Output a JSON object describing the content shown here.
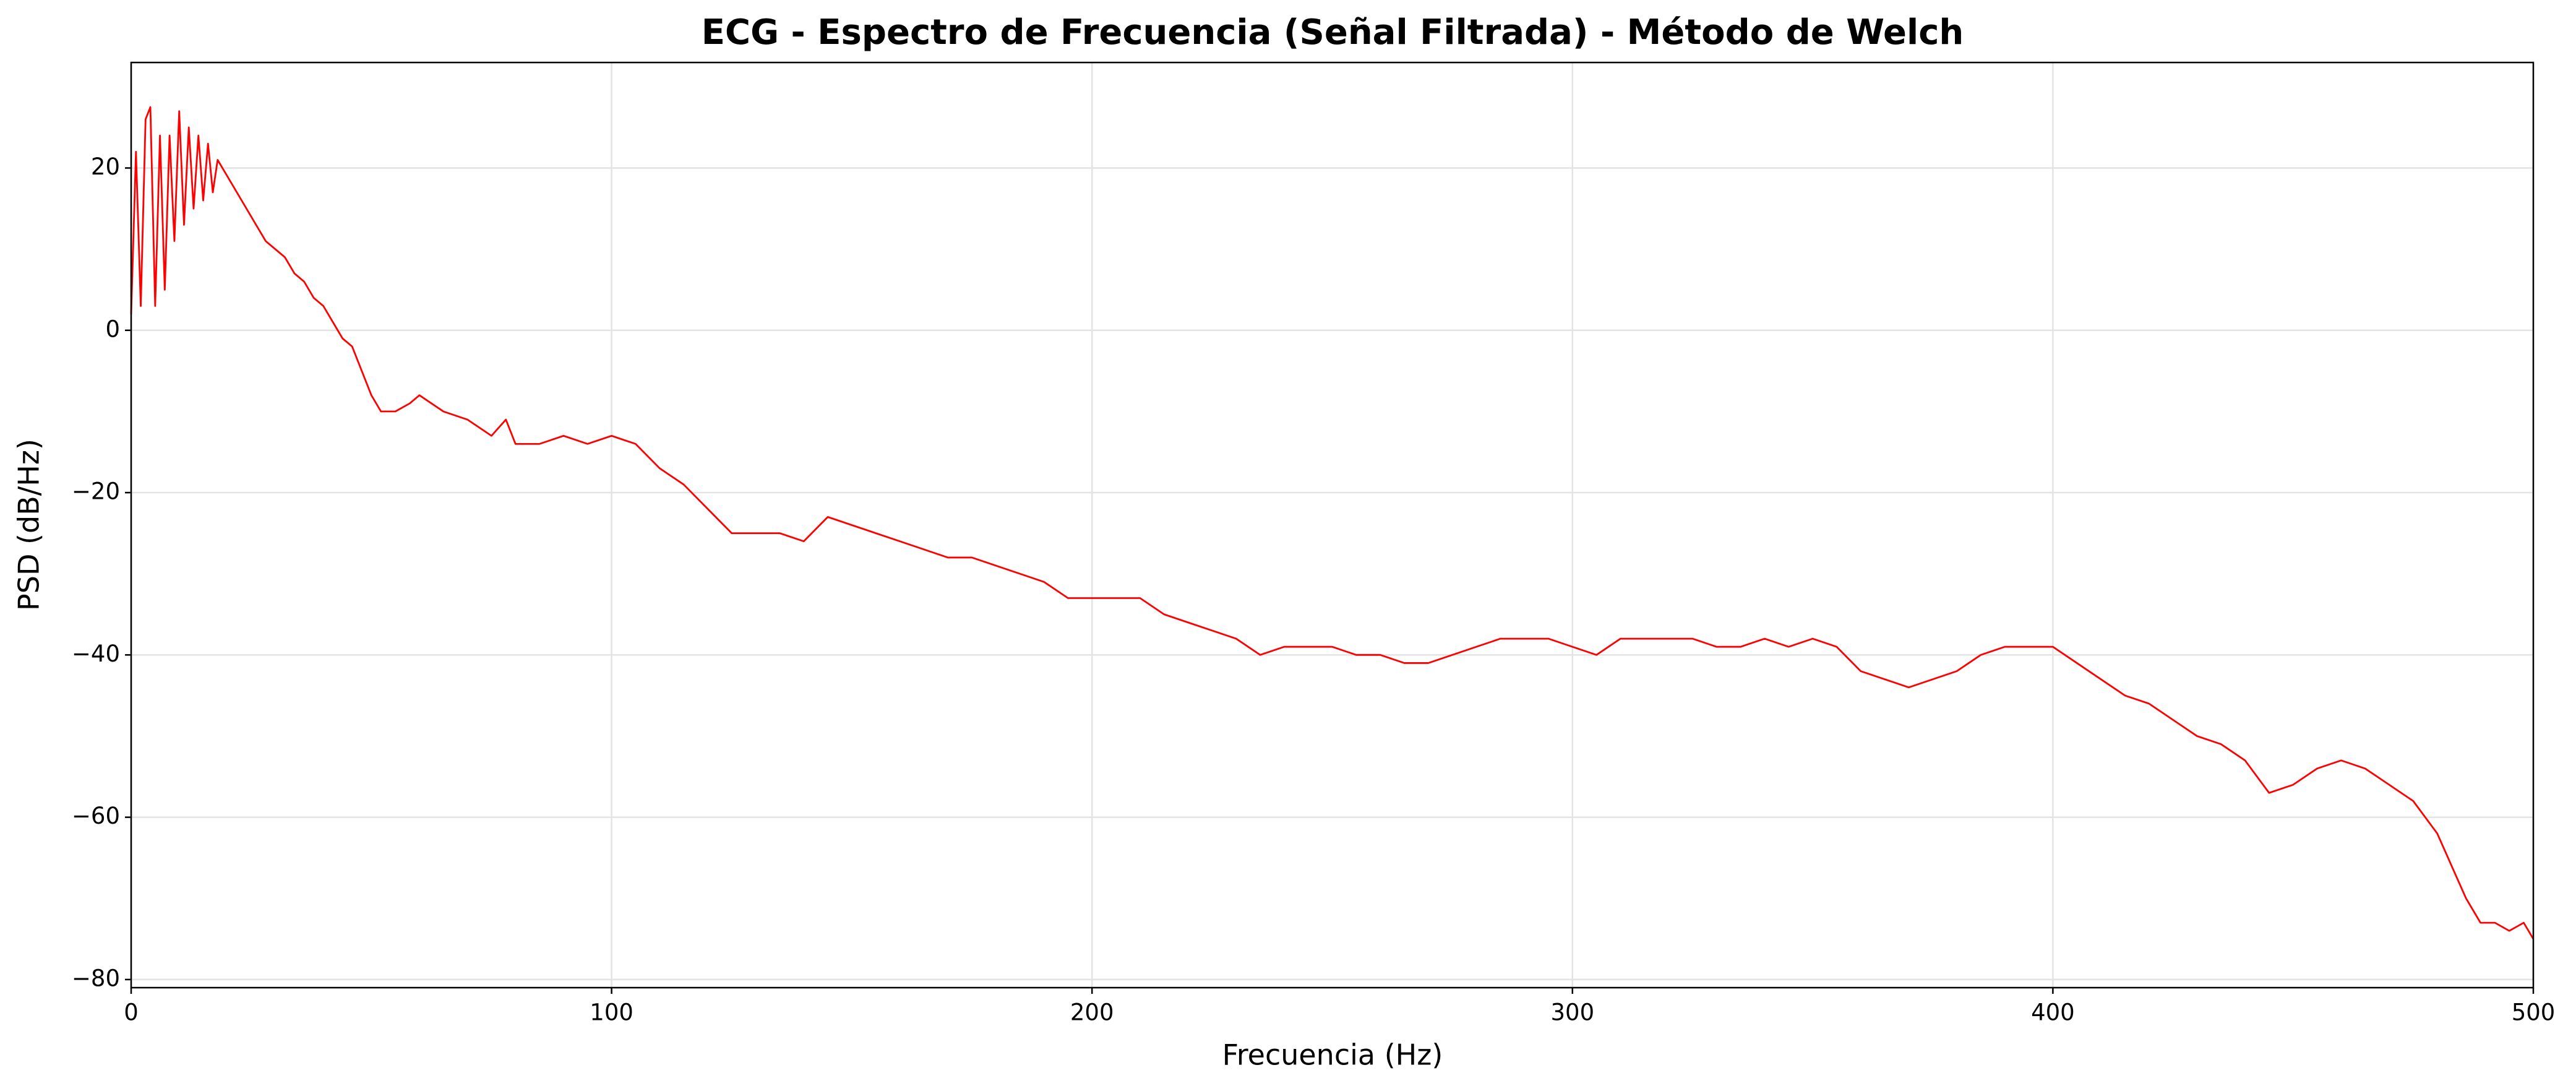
{
  "chart_data": {
    "type": "line",
    "title": "ECG - Espectro de Frecuencia (Señal Filtrada) - Método de Welch",
    "xlabel": "Frecuencia (Hz)",
    "ylabel": "PSD (dB/Hz)",
    "grid": true,
    "xlim": [
      0,
      500
    ],
    "ylim": [
      -81,
      33
    ],
    "xticks": [
      0,
      100,
      200,
      300,
      400,
      500
    ],
    "yticks": [
      {
        "value": -80,
        "label": "−80"
      },
      {
        "value": -60,
        "label": "−60"
      },
      {
        "value": -40,
        "label": "−40"
      },
      {
        "value": -20,
        "label": "−20"
      },
      0,
      20
    ],
    "x": [
      0,
      1,
      2,
      3,
      4,
      5,
      6,
      7,
      8,
      9,
      10,
      11,
      12,
      13,
      14,
      15,
      16,
      17,
      18,
      20,
      22,
      24,
      26,
      28,
      30,
      32,
      34,
      36,
      38,
      40,
      42,
      44,
      46,
      48,
      50,
      52,
      55,
      58,
      60,
      65,
      70,
      75,
      78,
      80,
      85,
      90,
      95,
      100,
      105,
      110,
      115,
      120,
      125,
      130,
      135,
      140,
      145,
      150,
      155,
      160,
      165,
      170,
      175,
      180,
      185,
      190,
      195,
      200,
      205,
      210,
      215,
      220,
      225,
      230,
      235,
      240,
      245,
      250,
      255,
      260,
      265,
      270,
      275,
      280,
      285,
      290,
      295,
      300,
      305,
      310,
      315,
      320,
      325,
      330,
      335,
      340,
      345,
      350,
      355,
      360,
      365,
      370,
      375,
      380,
      385,
      390,
      395,
      400,
      405,
      410,
      415,
      420,
      425,
      430,
      435,
      440,
      445,
      450,
      455,
      460,
      465,
      470,
      475,
      480,
      483,
      486,
      489,
      492,
      495,
      498,
      500
    ],
    "series": [
      {
        "name": "PSD",
        "color": "#ff0000",
        "values": [
          2,
          22,
          3,
          26,
          27.5,
          3,
          24,
          5,
          24,
          11,
          27,
          13,
          25,
          15,
          24,
          16,
          23,
          17,
          21,
          19,
          17,
          15,
          13,
          11,
          10,
          9,
          7,
          6,
          4,
          3,
          1,
          -1,
          -2,
          -5,
          -8,
          -10,
          -10,
          -9,
          -8,
          -10,
          -11,
          -13,
          -11,
          -14,
          -14,
          -13,
          -14,
          -13,
          -14,
          -17,
          -19,
          -22,
          -25,
          -25,
          -25,
          -26,
          -23,
          -24,
          -25,
          -26,
          -27,
          -28,
          -28,
          -29,
          -30,
          -31,
          -33,
          -33,
          -33,
          -33,
          -35,
          -36,
          -37,
          -38,
          -40,
          -39,
          -39,
          -39,
          -40,
          -40,
          -41,
          -41,
          -40,
          -39,
          -38,
          -38,
          -38,
          -39,
          -40,
          -38,
          -38,
          -38,
          -38,
          -39,
          -39,
          -38,
          -39,
          -38,
          -39,
          -42,
          -43,
          -44,
          -43,
          -42,
          -40,
          -39,
          -39,
          -39,
          -41,
          -43,
          -45,
          -46,
          -48,
          -50,
          -51,
          -53,
          -57,
          -56,
          -54,
          -53,
          -54,
          -56,
          -58,
          -62,
          -66,
          -70,
          -73,
          -73,
          -74,
          -73,
          -75
        ]
      }
    ]
  }
}
